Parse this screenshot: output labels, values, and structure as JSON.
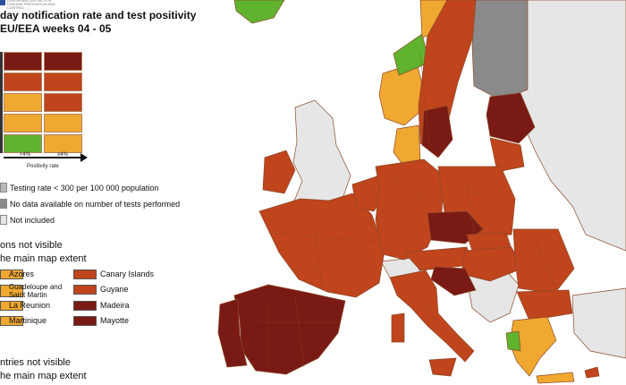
{
  "header": {
    "title_line1": "day notification rate and test positivity",
    "title_line2": "EU/EEA weeks 04 - 05",
    "logo_text": "EUROPEAN CENTRE FOR DISEASE PREVENTION AND CONTROL"
  },
  "matrix": {
    "x_ticks": [
      "<4%",
      "≥4%"
    ],
    "x_label": "Positivity rate",
    "rows": [
      [
        "#7a1a14",
        "#7a1a14"
      ],
      [
        "#c0441c",
        "#c0441c"
      ],
      [
        "#f0a830",
        "#c0441c"
      ],
      [
        "#f0a830",
        "#f0a830"
      ],
      [
        "#5fb32f",
        "#f0a830"
      ]
    ]
  },
  "gray_legend": [
    {
      "label": "Testing rate < 300 per 100 000 population",
      "color": "#b9b9b9"
    },
    {
      "label": "No data available on number of tests performed",
      "color": "#8a8a8a"
    },
    {
      "label": "Not included",
      "color": "#e6e6e6"
    }
  ],
  "regions_heading": [
    "ons not visible",
    "he main map extent"
  ],
  "regions_left": [
    {
      "label": "Azores",
      "color": "#f0a830"
    },
    {
      "label": "Guadeloupe and Saint Martin",
      "color": "#f0a830"
    },
    {
      "label": "La Reunion",
      "color": "#f0a830"
    },
    {
      "label": "Martinique",
      "color": "#f0a830"
    }
  ],
  "regions_right": [
    {
      "label": "Canary Islands",
      "color": "#c0441c"
    },
    {
      "label": "Guyane",
      "color": "#c0441c"
    },
    {
      "label": "Madeira",
      "color": "#7a1a14"
    },
    {
      "label": "Mayotte",
      "color": "#7a1a14"
    }
  ],
  "countries_heading": [
    "ntries not visible",
    "he main map extent"
  ],
  "map_colors": {
    "sea": "#ffffff",
    "non_eu": "#e6e6e6",
    "dark_red": "#7a1a14",
    "red": "#c0441c",
    "orange": "#f0a830",
    "green": "#5fb32f",
    "gray": "#8a8a8a",
    "border": "#8a4a2a"
  }
}
